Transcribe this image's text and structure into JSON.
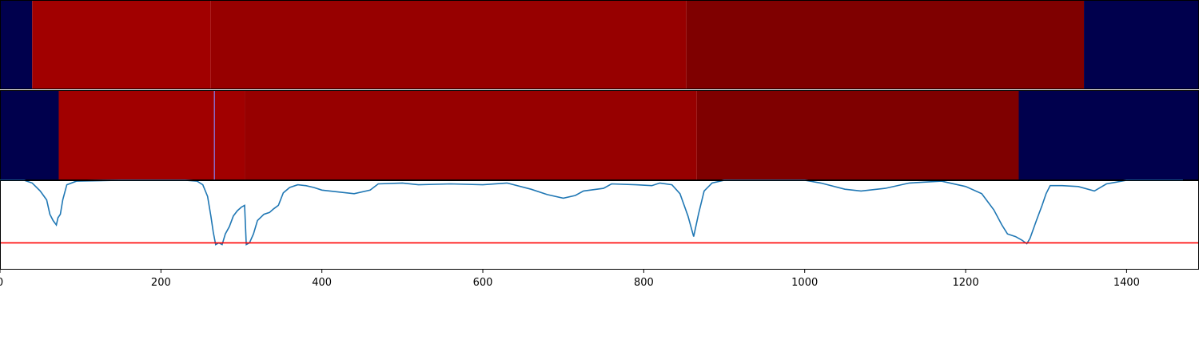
{
  "chart_data": [
    {
      "type": "heatmap",
      "panel": "top-strip",
      "colormap": "seismic",
      "xlim": [
        0,
        1490
      ],
      "segments": [
        {
          "start": 0,
          "end": 40,
          "color": "#00004d"
        },
        {
          "start": 40,
          "end": 262,
          "color": "#a10000"
        },
        {
          "start": 262,
          "end": 853,
          "color": "#970000"
        },
        {
          "start": 853,
          "end": 1347,
          "color": "#7f0000"
        },
        {
          "start": 1347,
          "end": 1490,
          "color": "#00004d"
        }
      ]
    },
    {
      "type": "heatmap",
      "panel": "middle-strip",
      "colormap": "seismic",
      "xlim": [
        0,
        1490
      ],
      "segments": [
        {
          "start": 0,
          "end": 73,
          "color": "#00004d"
        },
        {
          "start": 73,
          "end": 266,
          "color": "#a10000"
        },
        {
          "start": 266,
          "end": 267,
          "color": "#6a6aff"
        },
        {
          "start": 267,
          "end": 304,
          "color": "#a10000"
        },
        {
          "start": 304,
          "end": 866,
          "color": "#970000"
        },
        {
          "start": 866,
          "end": 1266,
          "color": "#7f0000"
        },
        {
          "start": 1266,
          "end": 1490,
          "color": "#00004d"
        }
      ]
    },
    {
      "type": "line",
      "panel": "bottom-line",
      "xlim": [
        0,
        1490
      ],
      "ylim": [
        0,
        1
      ],
      "threshold": 0.3,
      "threshold_color": "#ff0000",
      "x_ticks": [
        "0",
        "200",
        "400",
        "600",
        "800",
        "1000",
        "1200",
        "1400"
      ],
      "series": [
        {
          "color": "#1f77b4",
          "points": [
            [
              0,
              1.0
            ],
            [
              30,
              1.0
            ],
            [
              40,
              0.97
            ],
            [
              50,
              0.88
            ],
            [
              58,
              0.78
            ],
            [
              62,
              0.62
            ],
            [
              66,
              0.55
            ],
            [
              70,
              0.5
            ],
            [
              72,
              0.58
            ],
            [
              75,
              0.62
            ],
            [
              78,
              0.78
            ],
            [
              83,
              0.95
            ],
            [
              95,
              0.99
            ],
            [
              150,
              1.0
            ],
            [
              230,
              1.0
            ],
            [
              245,
              0.99
            ],
            [
              252,
              0.95
            ],
            [
              258,
              0.82
            ],
            [
              262,
              0.6
            ],
            [
              265,
              0.42
            ],
            [
              268,
              0.28
            ],
            [
              272,
              0.3
            ],
            [
              276,
              0.28
            ],
            [
              280,
              0.4
            ],
            [
              285,
              0.48
            ],
            [
              290,
              0.6
            ],
            [
              295,
              0.66
            ],
            [
              300,
              0.7
            ],
            [
              304,
              0.72
            ],
            [
              306,
              0.28
            ],
            [
              310,
              0.3
            ],
            [
              315,
              0.4
            ],
            [
              320,
              0.55
            ],
            [
              328,
              0.62
            ],
            [
              335,
              0.64
            ],
            [
              340,
              0.68
            ],
            [
              346,
              0.72
            ],
            [
              352,
              0.86
            ],
            [
              360,
              0.92
            ],
            [
              370,
              0.95
            ],
            [
              380,
              0.94
            ],
            [
              390,
              0.92
            ],
            [
              400,
              0.89
            ],
            [
              420,
              0.87
            ],
            [
              440,
              0.85
            ],
            [
              460,
              0.89
            ],
            [
              470,
              0.96
            ],
            [
              500,
              0.97
            ],
            [
              520,
              0.95
            ],
            [
              560,
              0.96
            ],
            [
              600,
              0.95
            ],
            [
              630,
              0.97
            ],
            [
              660,
              0.9
            ],
            [
              680,
              0.84
            ],
            [
              700,
              0.8
            ],
            [
              715,
              0.83
            ],
            [
              725,
              0.88
            ],
            [
              750,
              0.91
            ],
            [
              760,
              0.96
            ],
            [
              790,
              0.95
            ],
            [
              810,
              0.94
            ],
            [
              820,
              0.97
            ],
            [
              835,
              0.95
            ],
            [
              845,
              0.85
            ],
            [
              855,
              0.6
            ],
            [
              862,
              0.37
            ],
            [
              868,
              0.62
            ],
            [
              875,
              0.88
            ],
            [
              885,
              0.97
            ],
            [
              900,
              1.0
            ],
            [
              1000,
              1.0
            ],
            [
              1020,
              0.97
            ],
            [
              1050,
              0.9
            ],
            [
              1070,
              0.88
            ],
            [
              1100,
              0.91
            ],
            [
              1130,
              0.97
            ],
            [
              1170,
              0.99
            ],
            [
              1200,
              0.93
            ],
            [
              1220,
              0.85
            ],
            [
              1235,
              0.67
            ],
            [
              1245,
              0.5
            ],
            [
              1252,
              0.4
            ],
            [
              1262,
              0.37
            ],
            [
              1270,
              0.33
            ],
            [
              1276,
              0.29
            ],
            [
              1280,
              0.35
            ],
            [
              1288,
              0.55
            ],
            [
              1295,
              0.72
            ],
            [
              1300,
              0.85
            ],
            [
              1305,
              0.94
            ],
            [
              1320,
              0.94
            ],
            [
              1340,
              0.93
            ],
            [
              1360,
              0.88
            ],
            [
              1375,
              0.96
            ],
            [
              1400,
              1.0
            ],
            [
              1470,
              1.0
            ]
          ]
        }
      ]
    }
  ]
}
